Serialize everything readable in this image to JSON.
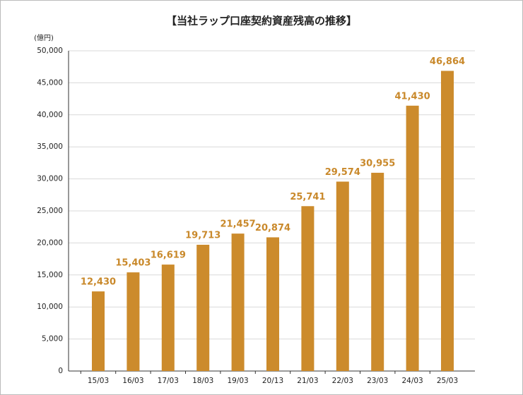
{
  "chart_data": {
    "type": "bar",
    "title": "【当社ラップ口座契約資産残高の推移】",
    "y_label": "(億円)",
    "categories": [
      "15/03",
      "16/03",
      "17/03",
      "18/03",
      "19/03",
      "20/13",
      "21/03",
      "22/03",
      "23/03",
      "24/03",
      "25/03"
    ],
    "values": [
      12430,
      15403,
      16619,
      19713,
      21457,
      20874,
      25741,
      29574,
      30955,
      41430,
      46864
    ],
    "value_labels": [
      "12,430",
      "15,403",
      "16,619",
      "19,713",
      "21,457",
      "20,874",
      "25,741",
      "29,574",
      "30,955",
      "41,430",
      "46,864"
    ],
    "color": "#cc8b2c",
    "label_color": "#c9892b",
    "ylim": [
      0,
      50000
    ],
    "yticks": [
      0,
      {
        "value": 5000,
        "label": "5,000"
      },
      {
        "value": 10000,
        "label": "10,000"
      },
      {
        "value": 15000,
        "label": "15,000"
      },
      {
        "value": 20000,
        "label": "20,000"
      },
      {
        "value": 25000,
        "label": "25,000"
      },
      {
        "value": 30000,
        "label": "30,000"
      },
      {
        "value": 35000,
        "label": "35,000"
      },
      {
        "value": 40000,
        "label": "40,000"
      },
      {
        "value": 45000,
        "label": "45,000"
      },
      {
        "value": 50000,
        "label": "50,000"
      }
    ],
    "grid": true
  }
}
